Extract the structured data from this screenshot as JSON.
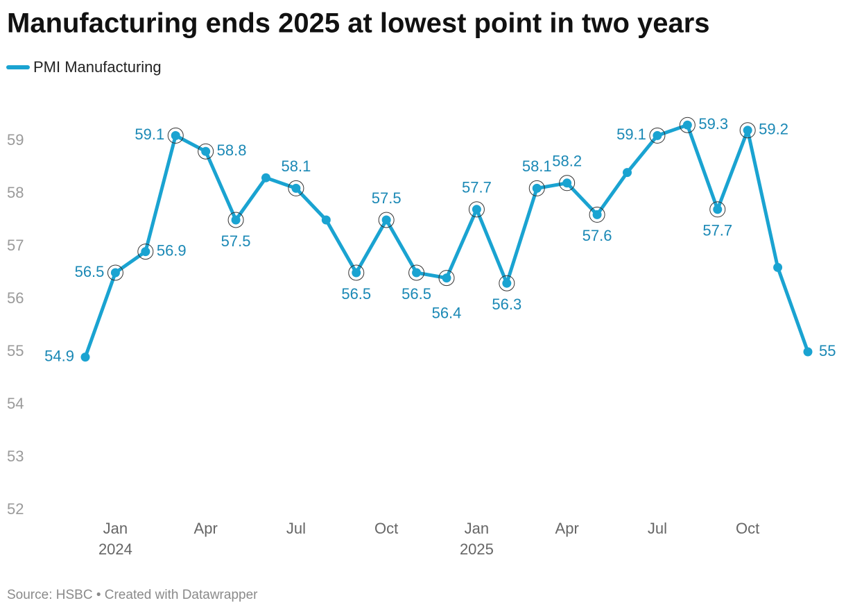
{
  "chart_data": {
    "type": "line",
    "title": "Manufacturing ends 2025 at lowest point in two years",
    "source": "Source: HSBC • Created with Datawrapper",
    "categories": [
      null,
      "Jan",
      null,
      null,
      "Apr",
      null,
      null,
      "Jul",
      null,
      null,
      "Oct",
      null,
      null,
      "Jan",
      null,
      null,
      "Apr",
      null,
      null,
      "Jul",
      null,
      null,
      "Oct",
      null,
      null
    ],
    "category_years": [
      null,
      "2024",
      null,
      null,
      null,
      null,
      null,
      null,
      null,
      null,
      null,
      null,
      null,
      "2025",
      null,
      null,
      null,
      null,
      null,
      null,
      null,
      null,
      null,
      null,
      null
    ],
    "series": [
      {
        "name": "PMI Manufacturing",
        "color": "#1aa3d1",
        "values": [
          54.9,
          56.5,
          56.9,
          59.1,
          58.8,
          57.5,
          58.3,
          58.1,
          57.5,
          56.5,
          57.5,
          56.5,
          56.4,
          57.7,
          56.3,
          58.1,
          58.2,
          57.6,
          58.4,
          59.1,
          59.3,
          57.7,
          59.2,
          56.6,
          55
        ],
        "value_labels": [
          "54.9",
          "56.5",
          "56.9",
          "59.1",
          "58.8",
          "57.5",
          null,
          "58.1",
          null,
          "56.5",
          "57.5",
          "56.5",
          "56.4",
          "57.7",
          "56.3",
          "58.1",
          "58.2",
          "57.6",
          null,
          "59.1",
          "59.3",
          "57.7",
          "59.2",
          null,
          "55"
        ]
      }
    ],
    "ylim": [
      52,
      59.5
    ],
    "yticks": [
      52,
      53,
      54,
      55,
      56,
      57,
      58,
      59
    ],
    "grid": false,
    "legend": "top-left",
    "label_color": "#1a88b5"
  }
}
